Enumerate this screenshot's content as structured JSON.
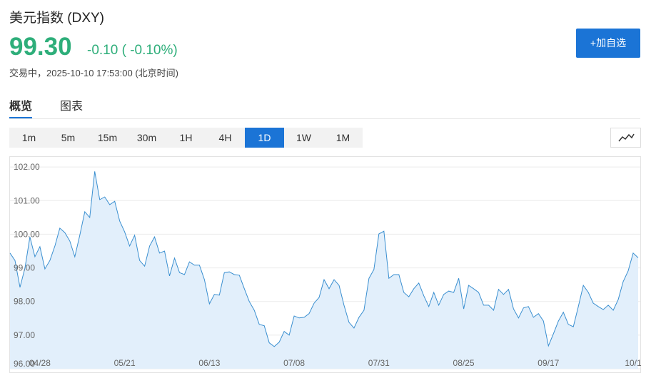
{
  "header": {
    "title": "美元指数 (DXY)",
    "price": "99.30",
    "change": "-0.10 ( -0.10%)",
    "status": "交易中，2025-10-10 17:53:00 (北京时间)",
    "button": "+加自选"
  },
  "tabs": [
    "概览",
    "图表"
  ],
  "periods": [
    "1m",
    "5m",
    "15m",
    "30m",
    "1H",
    "4H",
    "1D",
    "1W",
    "1M"
  ],
  "active_period": "1D",
  "chart_data": {
    "type": "area",
    "color": "#3a8fd0",
    "fill": "#e2effb",
    "categories": [
      null,
      null,
      null,
      null,
      null,
      null,
      "04/28",
      null,
      null,
      null,
      null,
      null,
      null,
      null,
      null,
      null,
      null,
      null,
      null,
      null,
      null,
      null,
      null,
      "05/21",
      null,
      null,
      null,
      null,
      null,
      null,
      null,
      null,
      null,
      null,
      null,
      null,
      null,
      null,
      null,
      null,
      "06/13",
      null,
      null,
      null,
      null,
      null,
      null,
      null,
      null,
      null,
      null,
      null,
      null,
      null,
      null,
      null,
      null,
      "07/08",
      null,
      null,
      null,
      null,
      null,
      null,
      null,
      null,
      null,
      null,
      null,
      null,
      null,
      null,
      null,
      null,
      "07/31",
      null,
      null,
      null,
      null,
      null,
      null,
      null,
      null,
      null,
      null,
      null,
      null,
      null,
      null,
      null,
      null,
      "08/25",
      null,
      null,
      null,
      null,
      null,
      null,
      null,
      null,
      null,
      null,
      null,
      null,
      null,
      null,
      null,
      null,
      "09/17",
      null,
      null,
      null,
      null,
      null,
      null,
      null,
      null,
      null,
      null,
      null,
      null,
      null,
      null,
      null,
      null,
      "10/1",
      null
    ],
    "values": [
      99.44,
      99.22,
      98.42,
      99.0,
      99.92,
      99.33,
      99.63,
      98.97,
      99.22,
      99.65,
      100.18,
      100.05,
      99.8,
      99.33,
      99.97,
      100.67,
      100.5,
      101.87,
      101.03,
      101.11,
      100.88,
      100.98,
      100.39,
      100.07,
      99.65,
      99.97,
      99.22,
      99.05,
      99.65,
      99.92,
      99.44,
      99.5,
      98.76,
      99.29,
      98.86,
      98.8,
      99.18,
      99.08,
      99.08,
      98.65,
      97.93,
      98.21,
      98.19,
      98.86,
      98.88,
      98.8,
      98.78,
      98.38,
      98.0,
      97.74,
      97.32,
      97.28,
      96.77,
      96.66,
      96.79,
      97.11,
      97.0,
      97.57,
      97.51,
      97.53,
      97.64,
      97.95,
      98.12,
      98.65,
      98.38,
      98.65,
      98.48,
      97.89,
      97.38,
      97.21,
      97.53,
      97.74,
      98.69,
      98.95,
      100.01,
      100.09,
      98.69,
      98.8,
      98.8,
      98.27,
      98.14,
      98.38,
      98.55,
      98.17,
      97.85,
      98.27,
      97.89,
      98.21,
      98.31,
      98.27,
      98.69,
      97.78,
      98.48,
      98.38,
      98.27,
      97.89,
      97.89,
      97.74,
      98.36,
      98.21,
      98.36,
      97.78,
      97.51,
      97.81,
      97.85,
      97.53,
      97.64,
      97.42,
      96.68,
      97.04,
      97.42,
      97.68,
      97.32,
      97.25,
      97.85,
      98.48,
      98.27,
      97.95,
      97.85,
      97.76,
      97.89,
      97.74,
      98.06,
      98.59,
      98.91,
      99.44,
      99.3
    ],
    "ylim": [
      96,
      102.3
    ],
    "yticks": [
      {
        "value": 96,
        "label": "96.00"
      },
      {
        "value": 97,
        "label": "97.00"
      },
      {
        "value": 98,
        "label": "98.00"
      },
      {
        "value": 99,
        "label": "99.00"
      },
      {
        "value": 100,
        "label": "100.00"
      },
      {
        "value": 101,
        "label": "101.00"
      },
      {
        "value": 102,
        "label": "102.00"
      }
    ],
    "grid": true
  }
}
